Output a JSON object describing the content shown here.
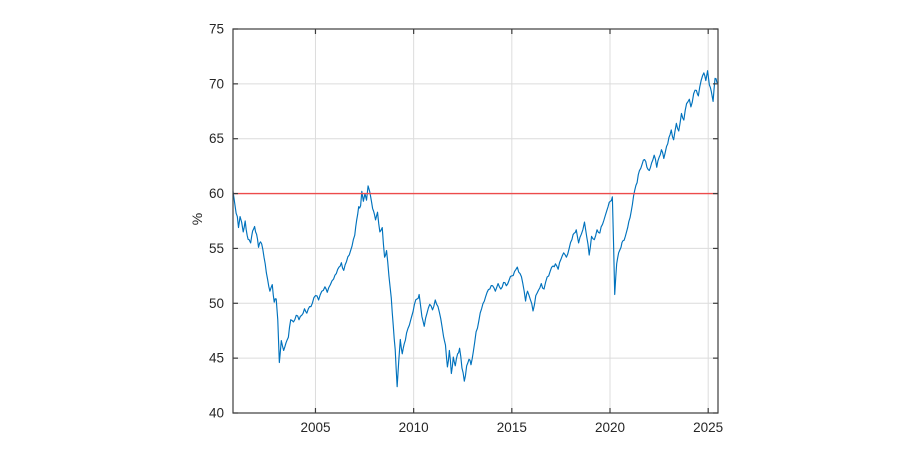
{
  "chart_data": {
    "type": "line",
    "xlabel": "",
    "ylabel": "%",
    "xlim": [
      2000.8,
      2025.5
    ],
    "ylim": [
      40,
      75
    ],
    "xticks": [
      2005,
      2010,
      2015,
      2020,
      2025
    ],
    "yticks": [
      40,
      45,
      50,
      55,
      60,
      65,
      70,
      75
    ],
    "grid": true,
    "legend": null,
    "style": {
      "series_color": "#0072BD",
      "reference_color": "#ED4B4B",
      "axis_color": "#3d3d3d",
      "grid_color": "#dcdcdc",
      "tick_label_color": "#262626",
      "jitter_amplitude": 0.18,
      "jitter_seed": 11
    },
    "series": [
      {
        "name": "main-series",
        "kind": "line",
        "color": "#0072BD",
        "points": [
          [
            2000.8,
            60.2
          ],
          [
            2000.88,
            59.2
          ],
          [
            2000.96,
            58.2
          ],
          [
            2001.02,
            57.9
          ],
          [
            2001.08,
            56.9
          ],
          [
            2001.16,
            57.9
          ],
          [
            2001.24,
            57.4
          ],
          [
            2001.32,
            56.5
          ],
          [
            2001.42,
            57.5
          ],
          [
            2001.52,
            56.2
          ],
          [
            2001.62,
            55.8
          ],
          [
            2001.7,
            55.5
          ],
          [
            2001.8,
            56.6
          ],
          [
            2001.9,
            57.0
          ],
          [
            2002.0,
            56.3
          ],
          [
            2002.1,
            55.1
          ],
          [
            2002.2,
            55.6
          ],
          [
            2002.32,
            54.9
          ],
          [
            2002.44,
            53.6
          ],
          [
            2002.56,
            52.2
          ],
          [
            2002.68,
            51.1
          ],
          [
            2002.8,
            51.7
          ],
          [
            2002.9,
            50.1
          ],
          [
            2003.0,
            50.4
          ],
          [
            2003.08,
            48.5
          ],
          [
            2003.16,
            44.6
          ],
          [
            2003.26,
            46.6
          ],
          [
            2003.38,
            45.7
          ],
          [
            2003.5,
            46.4
          ],
          [
            2003.62,
            46.9
          ],
          [
            2003.74,
            48.5
          ],
          [
            2003.88,
            48.3
          ],
          [
            2004.02,
            48.9
          ],
          [
            2004.16,
            48.5
          ],
          [
            2004.3,
            48.9
          ],
          [
            2004.44,
            49.5
          ],
          [
            2004.56,
            49.1
          ],
          [
            2004.7,
            49.7
          ],
          [
            2004.84,
            50.0
          ],
          [
            2005.0,
            50.7
          ],
          [
            2005.16,
            50.3
          ],
          [
            2005.32,
            51.1
          ],
          [
            2005.48,
            51.5
          ],
          [
            2005.6,
            51.0
          ],
          [
            2005.76,
            51.7
          ],
          [
            2005.92,
            52.2
          ],
          [
            2006.06,
            52.7
          ],
          [
            2006.2,
            53.3
          ],
          [
            2006.32,
            53.7
          ],
          [
            2006.44,
            53.0
          ],
          [
            2006.58,
            53.8
          ],
          [
            2006.72,
            54.4
          ],
          [
            2006.86,
            55.2
          ],
          [
            2007.0,
            56.2
          ],
          [
            2007.1,
            57.6
          ],
          [
            2007.2,
            58.8
          ],
          [
            2007.3,
            58.9
          ],
          [
            2007.36,
            60.2
          ],
          [
            2007.44,
            59.3
          ],
          [
            2007.52,
            60.0
          ],
          [
            2007.6,
            59.4
          ],
          [
            2007.68,
            60.7
          ],
          [
            2007.76,
            60.2
          ],
          [
            2007.86,
            59.2
          ],
          [
            2007.96,
            58.4
          ],
          [
            2008.06,
            57.6
          ],
          [
            2008.16,
            58.3
          ],
          [
            2008.28,
            56.5
          ],
          [
            2008.4,
            56.9
          ],
          [
            2008.52,
            54.2
          ],
          [
            2008.62,
            54.8
          ],
          [
            2008.74,
            52.5
          ],
          [
            2008.86,
            50.5
          ],
          [
            2008.96,
            48.0
          ],
          [
            2009.06,
            45.8
          ],
          [
            2009.16,
            42.4
          ],
          [
            2009.24,
            44.7
          ],
          [
            2009.32,
            46.7
          ],
          [
            2009.42,
            45.4
          ],
          [
            2009.52,
            46.3
          ],
          [
            2009.64,
            47.3
          ],
          [
            2009.78,
            48.0
          ],
          [
            2009.9,
            48.8
          ],
          [
            2010.04,
            49.9
          ],
          [
            2010.18,
            50.4
          ],
          [
            2010.28,
            50.8
          ],
          [
            2010.42,
            48.8
          ],
          [
            2010.54,
            47.9
          ],
          [
            2010.68,
            49.1
          ],
          [
            2010.82,
            49.9
          ],
          [
            2010.96,
            49.4
          ],
          [
            2011.1,
            50.3
          ],
          [
            2011.24,
            49.7
          ],
          [
            2011.38,
            48.6
          ],
          [
            2011.52,
            47.0
          ],
          [
            2011.62,
            46.2
          ],
          [
            2011.72,
            44.2
          ],
          [
            2011.82,
            45.7
          ],
          [
            2011.92,
            43.6
          ],
          [
            2012.02,
            45.1
          ],
          [
            2012.12,
            44.3
          ],
          [
            2012.24,
            45.4
          ],
          [
            2012.34,
            45.9
          ],
          [
            2012.46,
            44.1
          ],
          [
            2012.58,
            42.9
          ],
          [
            2012.7,
            44.3
          ],
          [
            2012.82,
            44.9
          ],
          [
            2012.92,
            44.4
          ],
          [
            2013.04,
            45.6
          ],
          [
            2013.18,
            47.4
          ],
          [
            2013.32,
            48.4
          ],
          [
            2013.46,
            49.5
          ],
          [
            2013.6,
            50.2
          ],
          [
            2013.74,
            51.0
          ],
          [
            2013.88,
            51.3
          ],
          [
            2014.02,
            51.6
          ],
          [
            2014.16,
            51.1
          ],
          [
            2014.3,
            51.8
          ],
          [
            2014.44,
            51.3
          ],
          [
            2014.58,
            51.9
          ],
          [
            2014.72,
            51.6
          ],
          [
            2014.86,
            52.1
          ],
          [
            2015.0,
            52.5
          ],
          [
            2015.14,
            52.9
          ],
          [
            2015.28,
            53.3
          ],
          [
            2015.42,
            52.7
          ],
          [
            2015.56,
            51.8
          ],
          [
            2015.7,
            50.2
          ],
          [
            2015.8,
            51.1
          ],
          [
            2015.95,
            50.3
          ],
          [
            2016.08,
            49.3
          ],
          [
            2016.22,
            50.7
          ],
          [
            2016.36,
            51.2
          ],
          [
            2016.5,
            51.8
          ],
          [
            2016.64,
            51.3
          ],
          [
            2016.8,
            52.4
          ],
          [
            2016.95,
            52.9
          ],
          [
            2017.1,
            53.4
          ],
          [
            2017.22,
            53.6
          ],
          [
            2017.36,
            53.1
          ],
          [
            2017.5,
            54.0
          ],
          [
            2017.64,
            54.6
          ],
          [
            2017.78,
            54.2
          ],
          [
            2017.92,
            55.0
          ],
          [
            2018.06,
            55.8
          ],
          [
            2018.18,
            56.4
          ],
          [
            2018.28,
            56.7
          ],
          [
            2018.4,
            55.5
          ],
          [
            2018.54,
            56.3
          ],
          [
            2018.7,
            57.4
          ],
          [
            2018.82,
            56.0
          ],
          [
            2018.94,
            54.4
          ],
          [
            2019.06,
            56.1
          ],
          [
            2019.2,
            55.8
          ],
          [
            2019.34,
            56.7
          ],
          [
            2019.48,
            56.4
          ],
          [
            2019.62,
            57.2
          ],
          [
            2019.76,
            58.0
          ],
          [
            2019.9,
            58.8
          ],
          [
            2020.02,
            59.3
          ],
          [
            2020.12,
            59.7
          ],
          [
            2020.18,
            55.5
          ],
          [
            2020.24,
            50.8
          ],
          [
            2020.34,
            53.6
          ],
          [
            2020.44,
            54.6
          ],
          [
            2020.56,
            55.1
          ],
          [
            2020.66,
            55.7
          ],
          [
            2020.78,
            56.1
          ],
          [
            2020.9,
            56.9
          ],
          [
            2021.02,
            57.8
          ],
          [
            2021.14,
            59.0
          ],
          [
            2021.26,
            60.3
          ],
          [
            2021.38,
            61.0
          ],
          [
            2021.5,
            62.1
          ],
          [
            2021.64,
            62.7
          ],
          [
            2021.76,
            63.1
          ],
          [
            2021.88,
            62.4
          ],
          [
            2022.0,
            62.1
          ],
          [
            2022.12,
            62.8
          ],
          [
            2022.25,
            63.5
          ],
          [
            2022.38,
            62.4
          ],
          [
            2022.5,
            63.3
          ],
          [
            2022.62,
            64.0
          ],
          [
            2022.74,
            63.2
          ],
          [
            2022.88,
            64.3
          ],
          [
            2023.0,
            65.1
          ],
          [
            2023.12,
            65.8
          ],
          [
            2023.24,
            64.9
          ],
          [
            2023.38,
            66.4
          ],
          [
            2023.5,
            65.7
          ],
          [
            2023.64,
            67.3
          ],
          [
            2023.76,
            66.7
          ],
          [
            2023.9,
            68.2
          ],
          [
            2024.04,
            68.6
          ],
          [
            2024.12,
            67.9
          ],
          [
            2024.26,
            69.1
          ],
          [
            2024.4,
            69.4
          ],
          [
            2024.5,
            68.9
          ],
          [
            2024.64,
            70.3
          ],
          [
            2024.78,
            71.0
          ],
          [
            2024.88,
            70.3
          ],
          [
            2024.97,
            71.2
          ],
          [
            2025.06,
            69.9
          ],
          [
            2025.16,
            69.3
          ],
          [
            2025.25,
            68.4
          ],
          [
            2025.35,
            70.5
          ],
          [
            2025.45,
            70.1
          ]
        ]
      },
      {
        "name": "reference-line",
        "kind": "hline",
        "color": "#ED4B4B",
        "value": 60
      }
    ]
  }
}
